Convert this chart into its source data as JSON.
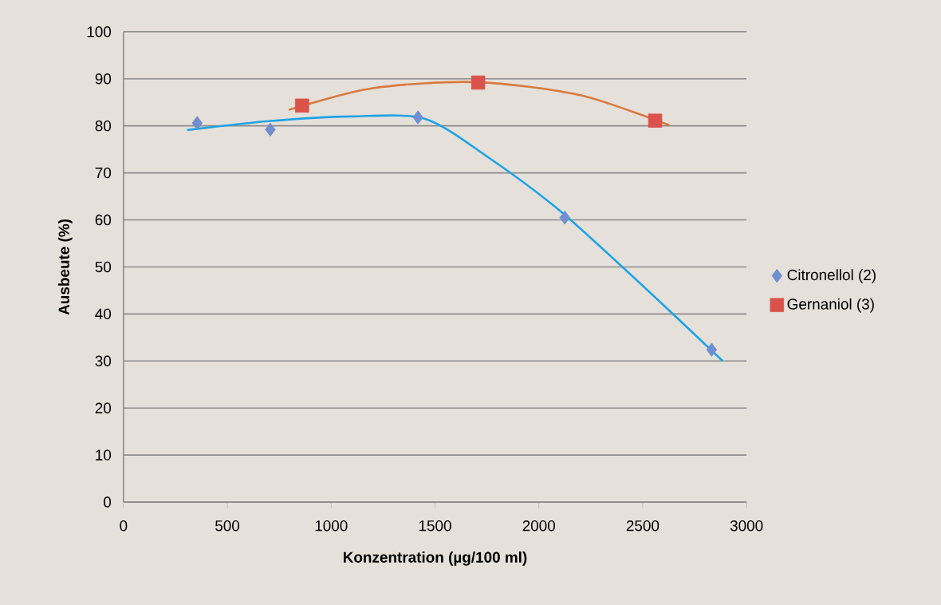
{
  "chart_data": {
    "type": "scatter",
    "xlabel": "Konzentration (µg/100 ml)",
    "ylabel": "Ausbeute (%)",
    "xlim": [
      0,
      3000
    ],
    "xticks": [
      0,
      500,
      1000,
      1500,
      2000,
      2500,
      3000
    ],
    "ylim": [
      0,
      100
    ],
    "yticks": [
      0,
      10,
      20,
      30,
      40,
      50,
      60,
      70,
      80,
      90,
      100
    ],
    "grid": "y",
    "legend": "right",
    "series": [
      {
        "name": "Citronellol (2)",
        "marker": "diamond",
        "color": "#6f8fd0",
        "x": [
          355,
          707,
          1418,
          2125,
          2832
        ],
        "values": [
          80.6,
          79.2,
          81.8,
          60.5,
          32.4
        ]
      },
      {
        "name": "Gernaniol (3)",
        "marker": "square",
        "color": "#d9534a",
        "x": [
          860,
          1708,
          2560
        ],
        "values": [
          84.3,
          89.2,
          81.1
        ]
      },
      {
        "type": "line",
        "marker": "none",
        "color": "#1ea3e6",
        "x": [
          306,
          700,
          1100,
          1450,
          1750,
          2100,
          2500,
          2885
        ],
        "values": [
          79.1,
          81,
          82,
          81.5,
          73.5,
          62,
          46,
          30
        ]
      },
      {
        "type": "line",
        "marker": "none",
        "color": "#d97a3e",
        "x": [
          795,
          1200,
          1700,
          2200,
          2629
        ],
        "values": [
          83.4,
          88,
          89.3,
          86.5,
          80.1
        ]
      }
    ]
  }
}
